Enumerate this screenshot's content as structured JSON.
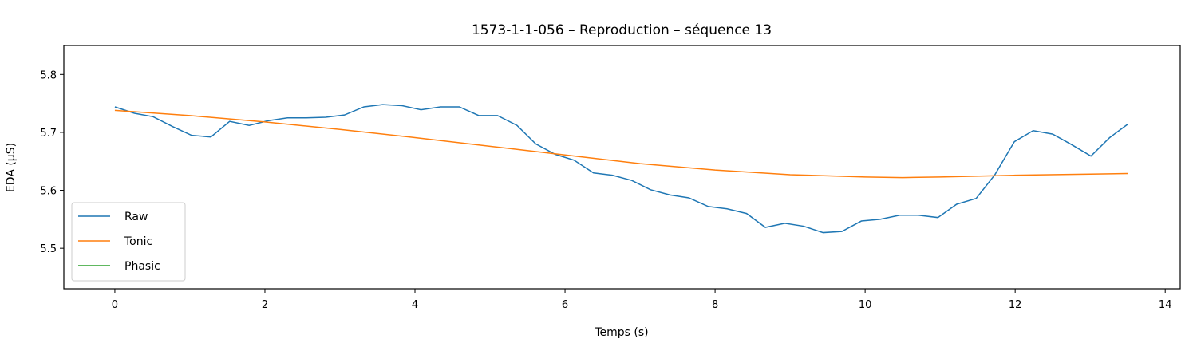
{
  "chart_data": {
    "type": "line",
    "title": "1573-1-1-056 – Reproduction – séquence 13",
    "xlabel": "Temps (s)",
    "ylabel": "EDA (µS)",
    "xlim": [
      -0.68,
      14.2
    ],
    "ylim": [
      5.43,
      5.85
    ],
    "xticks": [
      0,
      2,
      4,
      6,
      8,
      10,
      12,
      14
    ],
    "yticks": [
      5.5,
      5.6,
      5.7,
      5.8
    ],
    "grid": false,
    "legend_position": "lower-left",
    "series": [
      {
        "name": "Raw",
        "color": "#1f77b4",
        "x": [
          0,
          0.26,
          0.51,
          0.77,
          1.02,
          1.28,
          1.53,
          1.79,
          2.04,
          2.3,
          2.55,
          2.81,
          3.06,
          3.32,
          3.57,
          3.83,
          4.08,
          4.34,
          4.59,
          4.85,
          5.1,
          5.36,
          5.61,
          5.87,
          6.12,
          6.38,
          6.63,
          6.89,
          7.14,
          7.4,
          7.65,
          7.91,
          8.16,
          8.42,
          8.67,
          8.93,
          9.18,
          9.44,
          9.69,
          9.95,
          10.2,
          10.46,
          10.71,
          10.97,
          11.22,
          11.48,
          11.73,
          11.99,
          12.24,
          12.5,
          12.75,
          13.01,
          13.26,
          13.5
        ],
        "y": [
          5.744,
          5.733,
          5.727,
          5.71,
          5.695,
          5.692,
          5.719,
          5.712,
          5.72,
          5.725,
          5.725,
          5.726,
          5.73,
          5.744,
          5.748,
          5.746,
          5.739,
          5.744,
          5.744,
          5.729,
          5.729,
          5.712,
          5.68,
          5.662,
          5.652,
          5.63,
          5.626,
          5.617,
          5.601,
          5.592,
          5.587,
          5.572,
          5.568,
          5.56,
          5.536,
          5.543,
          5.538,
          5.527,
          5.529,
          5.547,
          5.55,
          5.557,
          5.557,
          5.553,
          5.576,
          5.586,
          5.627,
          5.684,
          5.703,
          5.697,
          5.679,
          5.659,
          5.691,
          5.714
        ]
      },
      {
        "name": "Tonic",
        "color": "#ff7f0e",
        "x": [
          0,
          1,
          2,
          3,
          4,
          5,
          6,
          7,
          8,
          9,
          10,
          10.5,
          11,
          12,
          13,
          13.5
        ],
        "y": [
          5.738,
          5.729,
          5.718,
          5.705,
          5.691,
          5.676,
          5.661,
          5.646,
          5.635,
          5.627,
          5.623,
          5.622,
          5.623,
          5.626,
          5.628,
          5.629
        ]
      },
      {
        "name": "Phasic",
        "color": "#2ca02c",
        "x": [],
        "y": []
      }
    ]
  }
}
